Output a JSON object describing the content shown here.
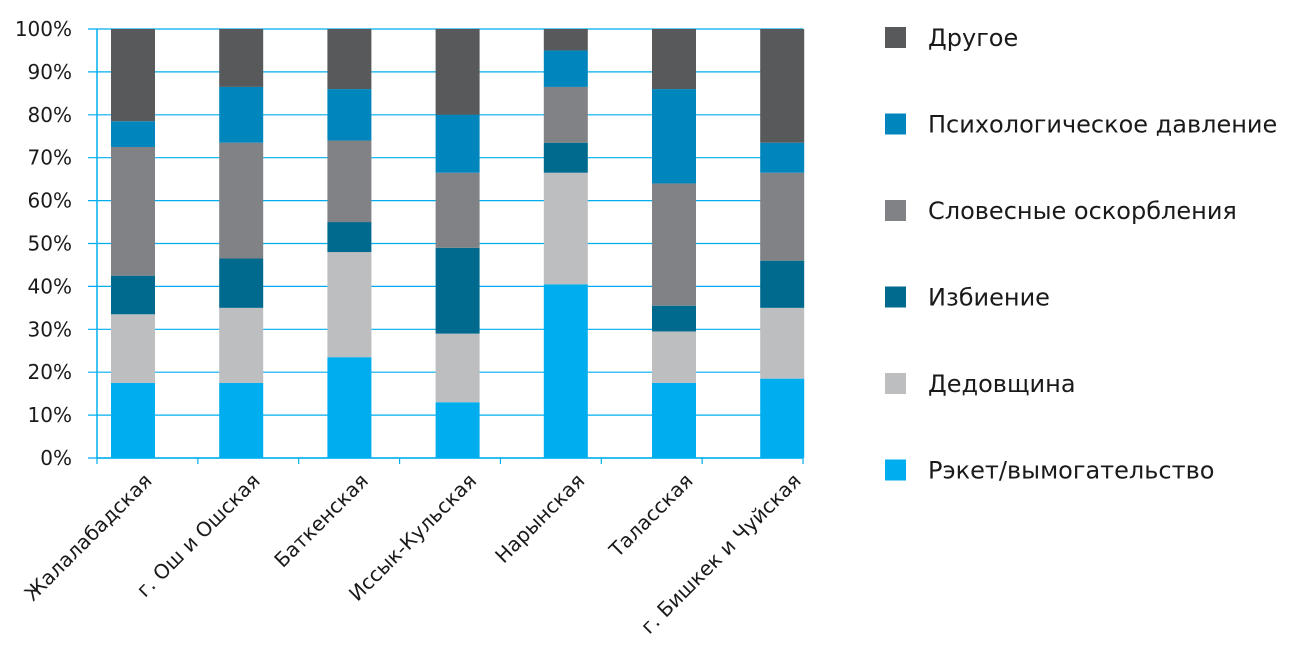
{
  "chart_data": {
    "type": "bar",
    "stacked": true,
    "categories": [
      "Жалалабадская",
      "г. Ош и Ошская",
      "Баткенская",
      "Иссык-Кульская",
      "Нарынская",
      "Таласская",
      "г. Бишкек и Чуйская"
    ],
    "ylim": [
      0,
      100
    ],
    "ytick_labels": [
      "0%",
      "10%",
      "20%",
      "30%",
      "40%",
      "50%",
      "60%",
      "70%",
      "80%",
      "90%",
      "100%"
    ],
    "grid": true,
    "legend_position": "right",
    "series": [
      {
        "name": "Рэкет/вымогательство",
        "color": "#00aeef",
        "values": [
          17.5,
          17.5,
          23.5,
          13,
          40.5,
          17.5,
          18.5
        ]
      },
      {
        "name": "Дедовщина",
        "color": "#bcbec0",
        "values": [
          16,
          17.5,
          24.5,
          16,
          26,
          12,
          16.5
        ]
      },
      {
        "name": "Избиение",
        "color": "#006a8e",
        "values": [
          9,
          11.5,
          7,
          20,
          7,
          6,
          11
        ]
      },
      {
        "name": "Словесные оскорбления",
        "color": "#808285",
        "values": [
          30,
          27,
          19,
          17.5,
          13,
          28.5,
          20.5
        ]
      },
      {
        "name": "Психологическое давление",
        "color": "#0086bd",
        "values": [
          6,
          13,
          12,
          13.5,
          8.5,
          22,
          7
        ]
      },
      {
        "name": "Другое",
        "color": "#58595b",
        "values": [
          21.5,
          13.5,
          14,
          20,
          5,
          14,
          26.5
        ]
      }
    ]
  }
}
